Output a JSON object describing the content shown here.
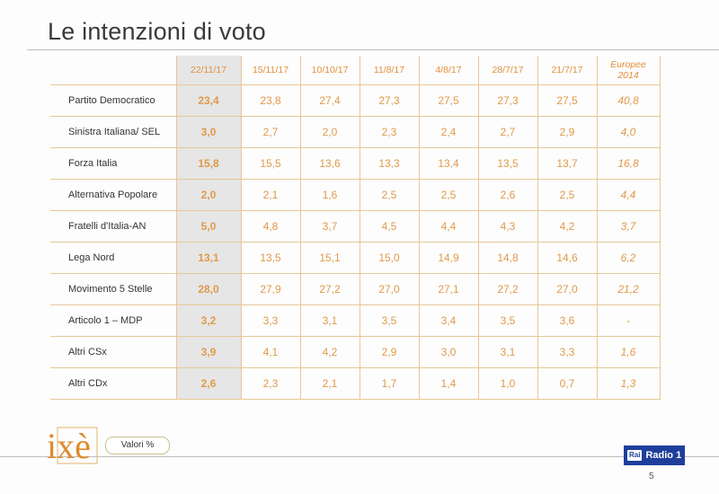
{
  "title": "Le intenzioni di voto",
  "columns": [
    "22/11/17",
    "15/11/17",
    "10/10/17",
    "11/8/17",
    "4/8/17",
    "28/7/17",
    "21/7/17"
  ],
  "europe_header": [
    "Europee",
    "2014"
  ],
  "rows": [
    {
      "party": "Partito Democratico",
      "values": [
        "23,4",
        "23,8",
        "27,4",
        "27,3",
        "27,5",
        "27,3",
        "27,5"
      ],
      "europe": "40,8"
    },
    {
      "party": "Sinistra Italiana/ SEL",
      "values": [
        "3,0",
        "2,7",
        "2,0",
        "2,3",
        "2,4",
        "2,7",
        "2,9"
      ],
      "europe": "4,0"
    },
    {
      "party": "Forza Italia",
      "values": [
        "15,8",
        "15,5",
        "13,6",
        "13,3",
        "13,4",
        "13,5",
        "13,7"
      ],
      "europe": "16,8"
    },
    {
      "party": "Alternativa Popolare",
      "values": [
        "2,0",
        "2,1",
        "1,6",
        "2,5",
        "2,5",
        "2,6",
        "2,5"
      ],
      "europe": "4,4"
    },
    {
      "party": "Fratelli d'Italia-AN",
      "values": [
        "5,0",
        "4,8",
        "3,7",
        "4,5",
        "4,4",
        "4,3",
        "4,2"
      ],
      "europe": "3,7"
    },
    {
      "party": "Lega Nord",
      "values": [
        "13,1",
        "13,5",
        "15,1",
        "15,0",
        "14,9",
        "14,8",
        "14,6"
      ],
      "europe": "6,2"
    },
    {
      "party": "Movimento 5 Stelle",
      "values": [
        "28,0",
        "27,9",
        "27,2",
        "27,0",
        "27,1",
        "27,2",
        "27,0"
      ],
      "europe": "21,2"
    },
    {
      "party": "Articolo 1 – MDP",
      "values": [
        "3,2",
        "3,3",
        "3,1",
        "3,5",
        "3,4",
        "3,5",
        "3,6"
      ],
      "europe": "-"
    },
    {
      "party": "Altri CSx",
      "values": [
        "3,9",
        "4,1",
        "4,2",
        "2,9",
        "3,0",
        "3,1",
        "3,3"
      ],
      "europe": "1,6"
    },
    {
      "party": "Altri CDx",
      "values": [
        "2,6",
        "2,3",
        "2,1",
        "1,7",
        "1,4",
        "1,0",
        "0,7"
      ],
      "europe": "1,3"
    }
  ],
  "footer": {
    "logo_text": "ixè",
    "valori": "Valori %",
    "radio_rai": "Rai",
    "radio_name": "Radio 1",
    "page": "5"
  },
  "colors": {
    "accent": "#e0882a",
    "grid": "#e7c796",
    "highlight_bg": "#e6e6e6",
    "radio_blue": "#1f3e9c"
  }
}
